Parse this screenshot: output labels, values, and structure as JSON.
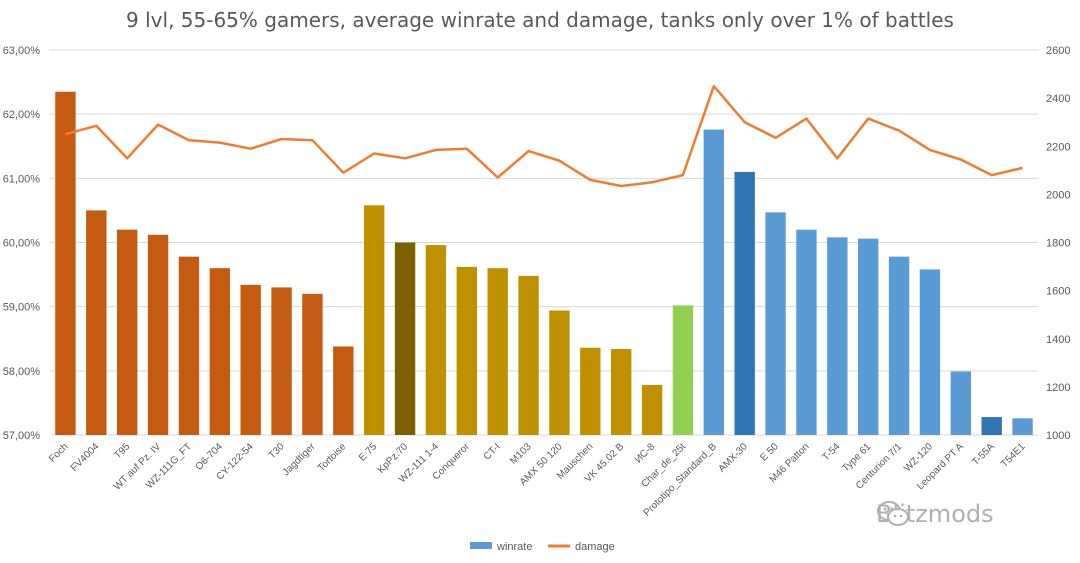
{
  "title": "9 lvl, 55-65% gamers, average winrate and damage, tanks only over 1% of battles",
  "watermark": "Blitzmods",
  "colors": {
    "orange": "#C55A11",
    "gold": "#BF9000",
    "darkgold": "#7F6000",
    "green": "#92D050",
    "lightblue": "#5B9BD5",
    "darkblue": "#2E75B6",
    "line": "#ED7D31",
    "grid": "#D9D9D9"
  },
  "chart_data": {
    "type": "bar",
    "title": "9 lvl, 55-65% gamers, average winrate and damage, tanks only over 1% of battles",
    "grid": true,
    "legend_placement": "bottom",
    "legend": [
      {
        "label": "winrate",
        "color": "#5B9BD5"
      },
      {
        "label": "damage",
        "color": "#ED7D31"
      }
    ],
    "y_left": {
      "min": 57,
      "max": 63,
      "ticks": [
        "57,00%",
        "58,00%",
        "59,00%",
        "60,00%",
        "61,00%",
        "62,00%",
        "63,00%"
      ]
    },
    "y_right": {
      "min": 1000,
      "max": 2600,
      "ticks": [
        "1000",
        "1200",
        "1400",
        "1600",
        "1800",
        "2000",
        "2200",
        "2400",
        "2600"
      ]
    },
    "categories": [
      "Foch",
      "FV4004",
      "T95",
      "WT auf Pz. IV",
      "WZ-111G_FT",
      "O6-704",
      "CY-122-54",
      "T30",
      "Jagdtiger",
      "Tortoise",
      "E 75",
      "KpPz.70",
      "WZ-111 1-4",
      "Conqueror",
      "CT-I",
      "M103",
      "AMX 50 120",
      "Mauschen",
      "VK 45.02 B",
      "ИС-8",
      "Char_de_25t",
      "Prototipo_Standard_B",
      "AMX-30",
      "E 50",
      "M46 Patton",
      "T-54",
      "Type 61",
      "Centurion 7/1",
      "WZ-120",
      "Leopard PT A",
      "T-55A",
      "T54E1"
    ],
    "series": [
      {
        "name": "winrate",
        "axis": "left",
        "kind": "bar",
        "values": [
          62.35,
          60.5,
          60.2,
          60.12,
          59.78,
          59.6,
          59.34,
          59.3,
          59.2,
          58.38,
          60.58,
          60.0,
          59.96,
          59.62,
          59.6,
          59.48,
          58.94,
          58.36,
          58.34,
          57.78,
          59.02,
          61.76,
          61.1,
          60.47,
          60.2,
          60.08,
          60.06,
          59.78,
          59.58,
          57.99,
          57.28,
          57.26
        ],
        "colors": [
          "#C55A11",
          "#C55A11",
          "#C55A11",
          "#C55A11",
          "#C55A11",
          "#C55A11",
          "#C55A11",
          "#C55A11",
          "#C55A11",
          "#C55A11",
          "#BF9000",
          "#7F6000",
          "#BF9000",
          "#BF9000",
          "#BF9000",
          "#BF9000",
          "#BF9000",
          "#BF9000",
          "#BF9000",
          "#BF9000",
          "#92D050",
          "#5B9BD5",
          "#2E75B6",
          "#5B9BD5",
          "#5B9BD5",
          "#5B9BD5",
          "#5B9BD5",
          "#5B9BD5",
          "#5B9BD5",
          "#5B9BD5",
          "#2E75B6",
          "#5B9BD5"
        ]
      },
      {
        "name": "damage",
        "axis": "right",
        "kind": "line",
        "values": [
          2250,
          2285,
          2150,
          2290,
          2225,
          2215,
          2190,
          2230,
          2225,
          2090,
          2170,
          2150,
          2185,
          2190,
          2070,
          2180,
          2140,
          2060,
          2035,
          2050,
          2080,
          2450,
          2300,
          2235,
          2315,
          2150,
          2315,
          2265,
          2185,
          2145,
          2080,
          2110
        ]
      }
    ]
  }
}
